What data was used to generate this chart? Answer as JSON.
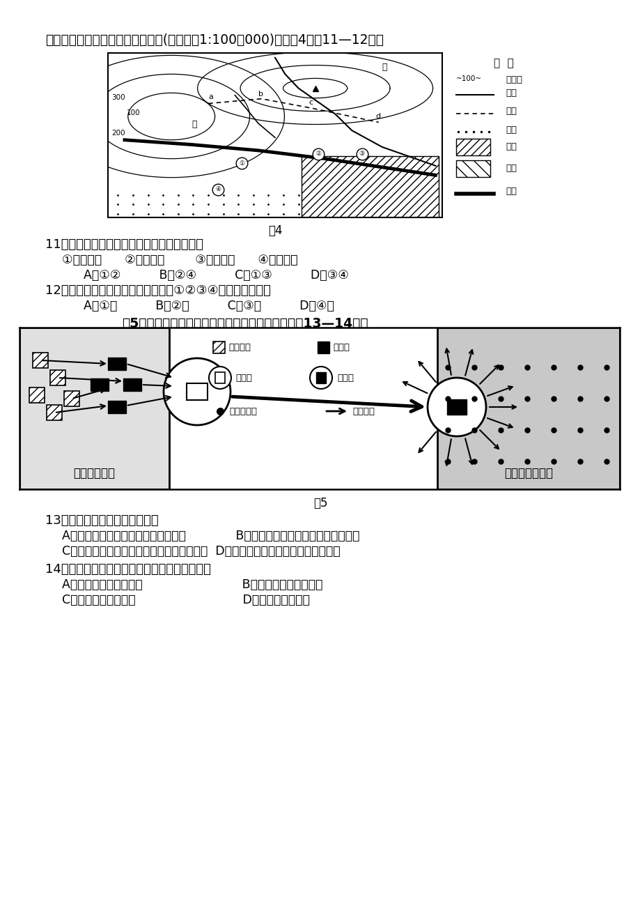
{
  "bg_color": "#ffffff",
  "page_width": 9.2,
  "page_height": 13.0,
  "intro_text": "下图是我国东南沿海某城镇规划图(比例尺为1:100，000)。读图4回答11—12题。",
  "fig4_caption": "图4",
  "fig5_title": "图5为美国铜矿资源开发布局指向示意图，读图回答13—14题。",
  "fig5_caption": "图5",
  "q11_text": "11．图中铁路分布存在着明显的问题，主要是",
  "q11_options": "  ①穿越河流      ②临近港湾        ③穿越城区      ④坡度太大",
  "q11_answers": "    A．①②          B．②④          C．①③          D．③④",
  "q12_text": "12．甲镇计划修建一个港口，在图中①②③④四处最合理的是",
  "q12_answers": "    A．①处          B．②处          C．③处          D．④处",
  "q13_text": "13．铜粗炼厂和精炼厂分别属于",
  "q13_AB": "  A．原料指向型工业和市场指向型工业             B．动力指向型工业和原料指向型工业",
  "q13_CD": "  C．动力指向型工业和廉价劳动力指向型工业  D．原料指向型工业和技术指向型工业",
  "q14_text": "14．大量铜材加工厂布局在精炼厂附近，有利于",
  "q14_AB": "  A．加强加工厂之间联系                          B．加强与精炼厂的协作",
  "q14_CD": "  C．扩大总体生产能力                            D．降低劳动力成本"
}
